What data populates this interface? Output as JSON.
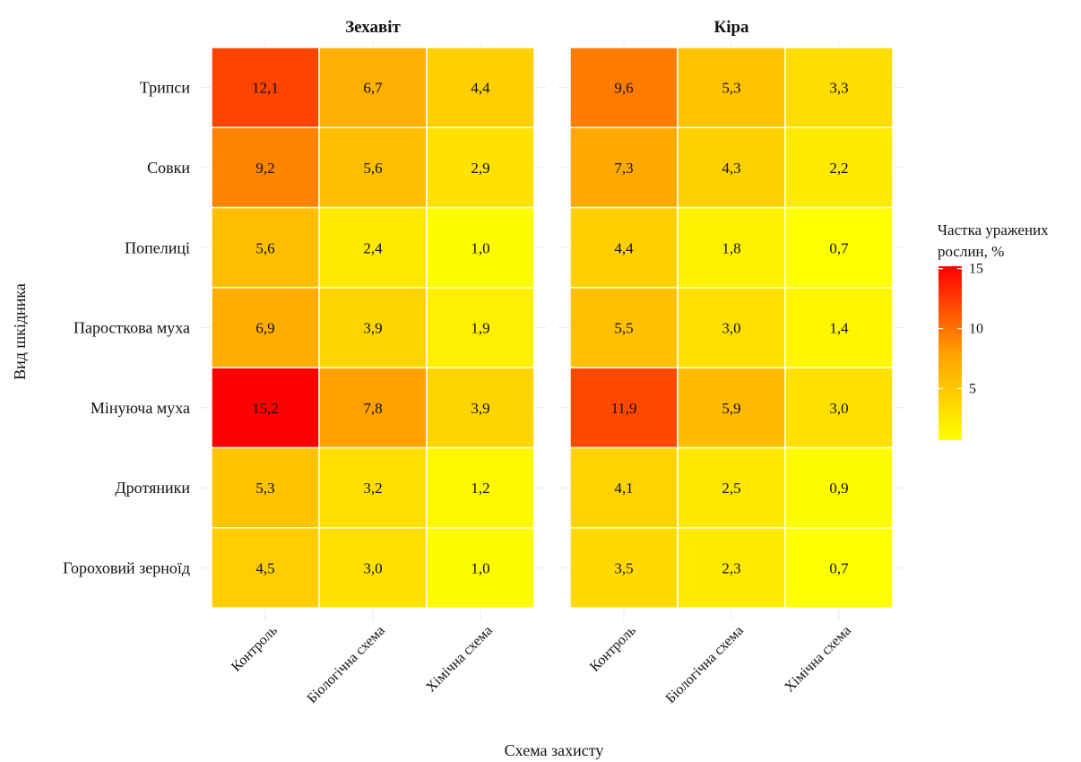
{
  "chart_data": {
    "type": "heatmap",
    "xlabel": "Схема захисту",
    "ylabel": "Вид шкідника",
    "x_categories": [
      "Контроль",
      "Біологічна схема",
      "Хімічна схема"
    ],
    "y_categories": [
      "Трипси",
      "Совки",
      "Попелиці",
      "Паросткова муха",
      "Мінуюча муха",
      "Дротяники",
      "Гороховий зерноїд"
    ],
    "panels": [
      {
        "title": "Зехавіт",
        "values": [
          [
            12.1,
            6.7,
            4.4
          ],
          [
            9.2,
            5.6,
            2.9
          ],
          [
            5.6,
            2.4,
            1.0
          ],
          [
            6.9,
            3.9,
            1.9
          ],
          [
            15.2,
            7.8,
            3.9
          ],
          [
            5.3,
            3.2,
            1.2
          ],
          [
            4.5,
            3.0,
            1.0
          ]
        ],
        "labels": [
          [
            "12,1",
            "6,7",
            "4,4"
          ],
          [
            "9,2",
            "5,6",
            "2,9"
          ],
          [
            "5,6",
            "2,4",
            "1,0"
          ],
          [
            "6,9",
            "3,9",
            "1,9"
          ],
          [
            "15,2",
            "7,8",
            "3,9"
          ],
          [
            "5,3",
            "3,2",
            "1,2"
          ],
          [
            "4,5",
            "3,0",
            "1,0"
          ]
        ]
      },
      {
        "title": "Кіра",
        "values": [
          [
            9.6,
            5.3,
            3.3
          ],
          [
            7.3,
            4.3,
            2.2
          ],
          [
            4.4,
            1.8,
            0.7
          ],
          [
            5.5,
            3.0,
            1.4
          ],
          [
            11.9,
            5.9,
            3.0
          ],
          [
            4.1,
            2.5,
            0.9
          ],
          [
            3.5,
            2.3,
            0.7
          ]
        ],
        "labels": [
          [
            "9,6",
            "5,3",
            "3,3"
          ],
          [
            "7,3",
            "4,3",
            "2,2"
          ],
          [
            "4,4",
            "1,8",
            "0,7"
          ],
          [
            "5,5",
            "3,0",
            "1,4"
          ],
          [
            "11,9",
            "5,9",
            "3,0"
          ],
          [
            "4,1",
            "2,5",
            "0,9"
          ],
          [
            "3,5",
            "2,3",
            "0,7"
          ]
        ]
      }
    ],
    "legend": {
      "title_line1": "Частка уражених",
      "title_line2": "рослин, %",
      "ticks": [
        5,
        10,
        15
      ],
      "tick_labels": [
        "5",
        "10",
        "15"
      ],
      "range": [
        0.7,
        15.2
      ],
      "placement": "right"
    },
    "color_scale": {
      "low": "#ffff00",
      "mid": "#ffa000",
      "high": "#ff0000"
    },
    "grid": true
  }
}
